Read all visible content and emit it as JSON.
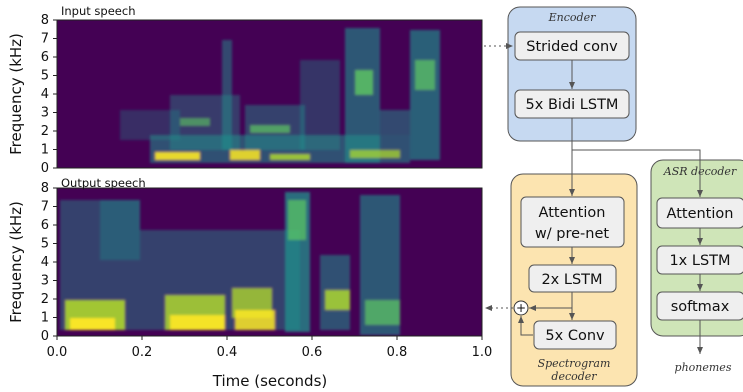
{
  "spectrograms": {
    "ylabel": "Frequency (kHz)",
    "xlabel": "Time (seconds)",
    "yticks": [
      "0",
      "1",
      "2",
      "3",
      "4",
      "5",
      "6",
      "7",
      "8"
    ],
    "xticks": [
      "0.0",
      "0.2",
      "0.4",
      "0.6",
      "0.8",
      "1.0"
    ],
    "panels": [
      {
        "title": "Input speech"
      },
      {
        "title": "Output speech"
      }
    ],
    "colors": {
      "background": "#440154",
      "mid": "#21918c",
      "high": "#fde725"
    }
  },
  "encoder": {
    "title": "Encoder",
    "blocks": [
      "Strided conv",
      "5x Bidi LSTM"
    ],
    "color": "#c6d9f1"
  },
  "spectrogram_decoder": {
    "title_line1": "Spectrogram",
    "title_line2": "decoder",
    "blocks": [
      "Attention",
      "w/ pre-net",
      "2x LSTM",
      "5x Conv"
    ],
    "sum_symbol": "+",
    "color": "#fce4b0"
  },
  "asr_decoder": {
    "title": "ASR decoder",
    "blocks": [
      "Attention",
      "1x LSTM",
      "softmax"
    ],
    "output": "phonemes",
    "color": "#cfe5b8"
  }
}
